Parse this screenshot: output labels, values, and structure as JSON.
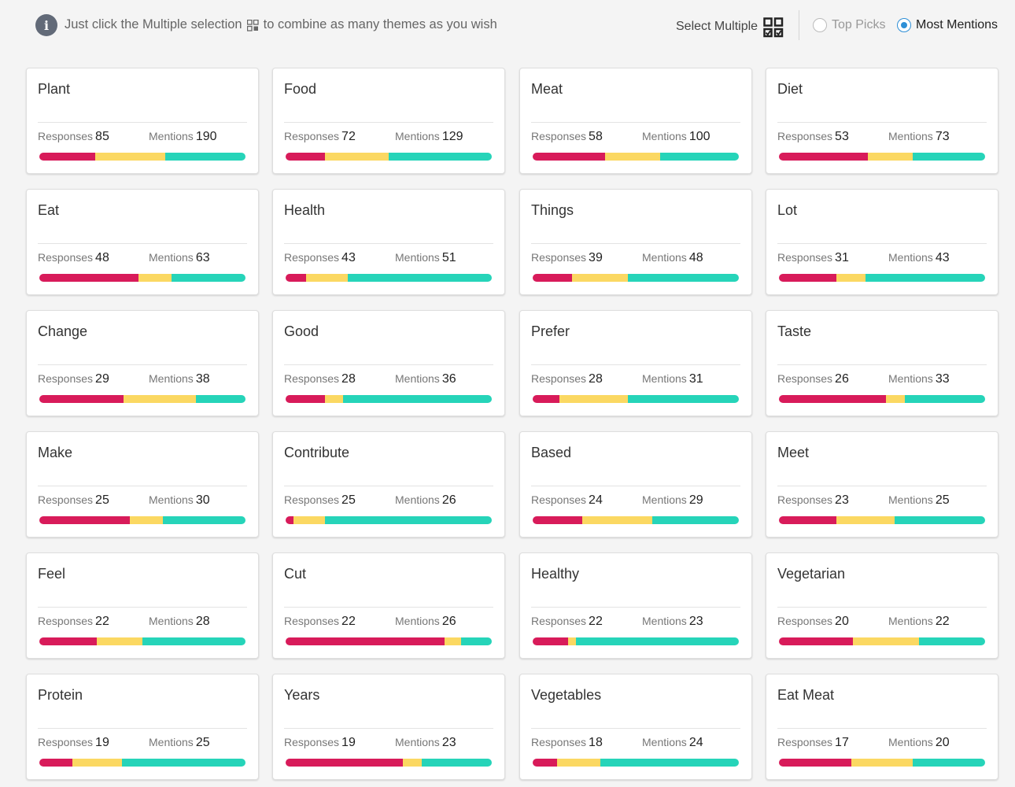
{
  "header": {
    "info_icon": "info-icon",
    "hint_prefix": "Just click the Multiple selection",
    "hint_suffix": "to combine as many themes as you wish",
    "select_multiple_label": "Select Multiple",
    "select_multiple_icon": "multi-select-icon",
    "sort_options": [
      {
        "label": "Top Picks",
        "selected": false
      },
      {
        "label": "Most Mentions",
        "selected": true
      }
    ]
  },
  "colors": {
    "negative": "#d81b5a",
    "neutral": "#fbd862",
    "positive": "#26d4b9",
    "accent": "#2e8fd6"
  },
  "labels": {
    "responses": "Responses",
    "mentions": "Mentions"
  },
  "themes": [
    {
      "title": "Plant",
      "responses": "85",
      "mentions": "190",
      "sentiment": [
        0.27,
        0.34,
        0.39
      ]
    },
    {
      "title": "Food",
      "responses": "72",
      "mentions": "129",
      "sentiment": [
        0.19,
        0.31,
        0.5
      ]
    },
    {
      "title": "Meat",
      "responses": "58",
      "mentions": "100",
      "sentiment": [
        0.35,
        0.27,
        0.38
      ]
    },
    {
      "title": "Diet",
      "responses": "53",
      "mentions": "73",
      "sentiment": [
        0.43,
        0.22,
        0.35
      ]
    },
    {
      "title": "Eat",
      "responses": "48",
      "mentions": "63",
      "sentiment": [
        0.48,
        0.16,
        0.36
      ]
    },
    {
      "title": "Health",
      "responses": "43",
      "mentions": "51",
      "sentiment": [
        0.1,
        0.2,
        0.7
      ]
    },
    {
      "title": "Things",
      "responses": "39",
      "mentions": "48",
      "sentiment": [
        0.19,
        0.27,
        0.54
      ]
    },
    {
      "title": "Lot",
      "responses": "31",
      "mentions": "43",
      "sentiment": [
        0.28,
        0.14,
        0.58
      ]
    },
    {
      "title": "Change",
      "responses": "29",
      "mentions": "38",
      "sentiment": [
        0.41,
        0.35,
        0.24
      ]
    },
    {
      "title": "Good",
      "responses": "28",
      "mentions": "36",
      "sentiment": [
        0.19,
        0.09,
        0.72
      ]
    },
    {
      "title": "Prefer",
      "responses": "28",
      "mentions": "31",
      "sentiment": [
        0.13,
        0.33,
        0.54
      ]
    },
    {
      "title": "Taste",
      "responses": "26",
      "mentions": "33",
      "sentiment": [
        0.52,
        0.09,
        0.39
      ]
    },
    {
      "title": "Make",
      "responses": "25",
      "mentions": "30",
      "sentiment": [
        0.44,
        0.16,
        0.4
      ]
    },
    {
      "title": "Contribute",
      "responses": "25",
      "mentions": "26",
      "sentiment": [
        0.04,
        0.15,
        0.81
      ]
    },
    {
      "title": "Based",
      "responses": "24",
      "mentions": "29",
      "sentiment": [
        0.24,
        0.34,
        0.42
      ]
    },
    {
      "title": "Meet",
      "responses": "23",
      "mentions": "25",
      "sentiment": [
        0.28,
        0.28,
        0.44
      ]
    },
    {
      "title": "Feel",
      "responses": "22",
      "mentions": "28",
      "sentiment": [
        0.28,
        0.22,
        0.5
      ]
    },
    {
      "title": "Cut",
      "responses": "22",
      "mentions": "26",
      "sentiment": [
        0.77,
        0.08,
        0.15
      ]
    },
    {
      "title": "Healthy",
      "responses": "22",
      "mentions": "23",
      "sentiment": [
        0.17,
        0.04,
        0.79
      ]
    },
    {
      "title": "Vegetarian",
      "responses": "20",
      "mentions": "22",
      "sentiment": [
        0.36,
        0.32,
        0.32
      ]
    },
    {
      "title": "Protein",
      "responses": "19",
      "mentions": "25",
      "sentiment": [
        0.16,
        0.24,
        0.6
      ]
    },
    {
      "title": "Years",
      "responses": "19",
      "mentions": "23",
      "sentiment": [
        0.57,
        0.09,
        0.34
      ]
    },
    {
      "title": "Vegetables",
      "responses": "18",
      "mentions": "24",
      "sentiment": [
        0.12,
        0.21,
        0.67
      ]
    },
    {
      "title": "Eat Meat",
      "responses": "17",
      "mentions": "20",
      "sentiment": [
        0.35,
        0.3,
        0.35
      ]
    }
  ]
}
